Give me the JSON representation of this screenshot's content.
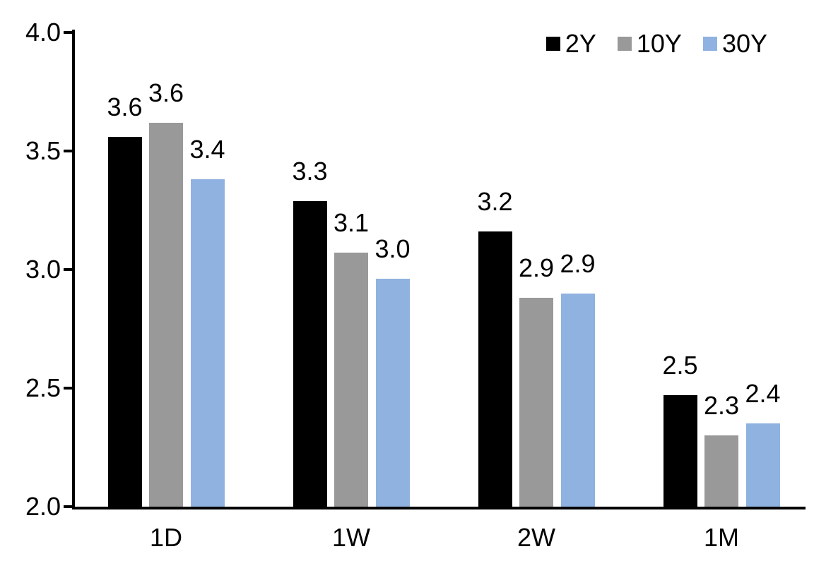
{
  "chart_data": {
    "type": "bar",
    "title": "",
    "xlabel": "",
    "ylabel": "",
    "categories": [
      "1D",
      "1W",
      "2W",
      "1M"
    ],
    "series": [
      {
        "name": "2Y",
        "color": "#000000",
        "values": [
          3.56,
          3.29,
          3.16,
          2.47
        ],
        "labels": [
          "3.6",
          "3.3",
          "3.2",
          "2.5"
        ]
      },
      {
        "name": "10Y",
        "color": "#999999",
        "values": [
          3.62,
          3.07,
          2.88,
          2.3
        ],
        "labels": [
          "3.6",
          "3.1",
          "2.9",
          "2.3"
        ]
      },
      {
        "name": "30Y",
        "color": "#8FB2E0",
        "values": [
          3.38,
          2.96,
          2.9,
          2.35
        ],
        "labels": [
          "3.4",
          "3.0",
          "2.9",
          "2.4"
        ]
      }
    ],
    "ylim": [
      2.0,
      4.0
    ],
    "yticks": [
      4.0,
      3.5,
      3.0,
      2.5,
      2.0
    ],
    "ytick_labels": [
      "4.0",
      "3.5",
      "3.0",
      "2.5",
      "2.0"
    ],
    "grid": false,
    "legend_position": "top-right",
    "value_labels_shown": true,
    "colors": {
      "axis": "#000000",
      "text": "#000000",
      "background": "#FFFFFF"
    }
  }
}
